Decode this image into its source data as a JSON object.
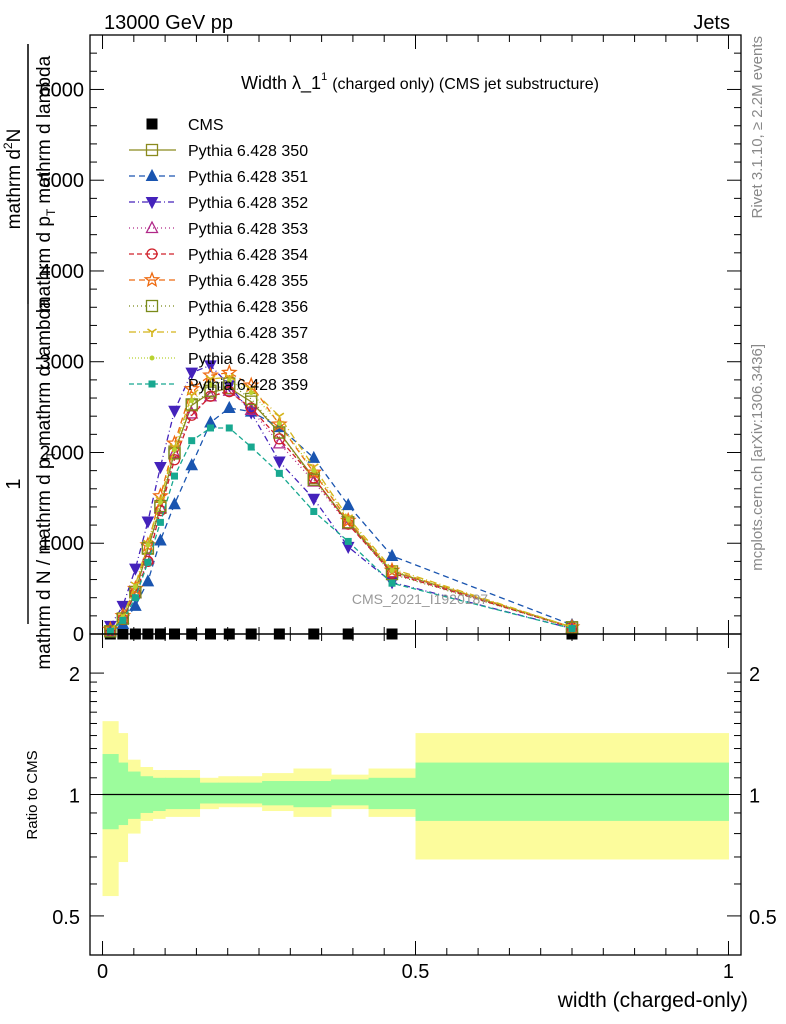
{
  "header": {
    "left": "13000 GeV pp",
    "right": "Jets"
  },
  "side_text": {
    "rivet": "Rivet 3.1.10, ≥ 2.2M events",
    "mcplots": "mcplots.cern.ch [arXiv:1306.3436]"
  },
  "watermark": "CMS_2021_I1920187",
  "chart_data": [
    {
      "type": "line",
      "panel": "main",
      "title_main": "Width λ_1",
      "title_sup": "1",
      "title_rest": "(charged only) (CMS jet substructure)",
      "ylabel_parts": [
        "mathrm d N / mathrm d p",
        "T",
        " mathrm d lambda",
        "1",
        "mathrm d N / mathrm d p",
        "T",
        " mathrm d lambda"
      ],
      "ylabel_num_top": "mathrm d",
      "ylabel_num_sup": "2",
      "ylabel_num_rest": "N",
      "ylabel_frac_one": "1",
      "ylabel_den_main": "mathrm d N / mathrm d p",
      "ylabel_den_sub": "T",
      "ylabel_den_rest": "mathrm d lambda",
      "ylabel_num_main": "mathrm d p",
      "ylabel_num_sub": "T",
      "ylabel_num_end": "mathrm d lambda",
      "xlim": [
        -0.02,
        1.02
      ],
      "ylim": [
        0,
        6600
      ],
      "yticks": [
        "0",
        "1000",
        "2000",
        "3000",
        "4000",
        "5000",
        "6000"
      ],
      "x": [
        0.0125,
        0.0325,
        0.0525,
        0.0725,
        0.0925,
        0.115,
        0.1425,
        0.1725,
        0.2025,
        0.2375,
        0.2825,
        0.3375,
        0.3925,
        0.4625,
        0.75
      ],
      "series": [
        {
          "name": "CMS",
          "values": [
            0,
            0,
            0,
            0,
            0,
            0,
            0,
            0,
            0,
            0,
            0,
            0,
            0,
            0,
            0
          ],
          "color": "#000000",
          "marker": "square-filled",
          "dash": "none"
        },
        {
          "name": "Pythia 6.428 350",
          "values": [
            30,
            170,
            460,
            940,
            1390,
            2010,
            2520,
            2660,
            2710,
            2560,
            2220,
            1720,
            1230,
            690,
            75
          ],
          "color": "#8a8a1e",
          "marker": "square-open",
          "dash": "solid"
        },
        {
          "name": "Pythia 6.428 351",
          "values": [
            20,
            110,
            310,
            580,
            1030,
            1430,
            1860,
            2330,
            2490,
            2450,
            2280,
            1940,
            1420,
            860,
            100
          ],
          "color": "#1a55b0",
          "marker": "triangle-up-filled",
          "dash": "6,4"
        },
        {
          "name": "Pythia 6.428 352",
          "values": [
            90,
            310,
            720,
            1240,
            1840,
            2460,
            2880,
            2960,
            2740,
            2440,
            1900,
            1490,
            960,
            570,
            60
          ],
          "color": "#4422bb",
          "marker": "triangle-down-filled",
          "dash": "6,3,1,3"
        },
        {
          "name": "Pythia 6.428 353",
          "values": [
            40,
            170,
            450,
            830,
            1390,
            1990,
            2430,
            2620,
            2680,
            2470,
            2100,
            1680,
            1210,
            680,
            70
          ],
          "color": "#b02888",
          "marker": "triangle-up-open",
          "dash": "1,3"
        },
        {
          "name": "Pythia 6.428 354",
          "values": [
            40,
            160,
            450,
            800,
            1360,
            1920,
            2410,
            2620,
            2670,
            2490,
            2150,
            1720,
            1210,
            670,
            70
          ],
          "color": "#d0202a",
          "marker": "circle-open",
          "dash": "5,3"
        },
        {
          "name": "Pythia 6.428 355",
          "values": [
            50,
            200,
            500,
            980,
            1520,
            2100,
            2700,
            2850,
            2880,
            2740,
            2310,
            1780,
            1250,
            700,
            75
          ],
          "color": "#ee6a10",
          "marker": "star-open",
          "dash": "6,4"
        },
        {
          "name": "Pythia 6.428 356",
          "values": [
            30,
            170,
            460,
            950,
            1410,
            1990,
            2530,
            2680,
            2760,
            2590,
            2220,
            1700,
            1230,
            660,
            70
          ],
          "color": "#7a8a1a",
          "marker": "square-open",
          "dash": "1,3"
        },
        {
          "name": "Pythia 6.428 357",
          "values": [
            40,
            200,
            540,
            1000,
            1480,
            2060,
            2630,
            2810,
            2830,
            2700,
            2400,
            1840,
            1280,
            720,
            75
          ],
          "color": "#d4b41a",
          "marker": "y-mark",
          "dash": "7,3,1,3"
        },
        {
          "name": "Pythia 6.428 358",
          "values": [
            40,
            190,
            520,
            980,
            1450,
            2030,
            2570,
            2750,
            2790,
            2660,
            2320,
            1800,
            1260,
            700,
            75
          ],
          "color": "#b8d230",
          "marker": "dot",
          "dash": "1,2"
        },
        {
          "name": "Pythia 6.428 359",
          "values": [
            30,
            150,
            400,
            790,
            1230,
            1740,
            2130,
            2270,
            2270,
            2060,
            1770,
            1350,
            1020,
            560,
            60
          ],
          "color": "#18a890",
          "marker": "square-small",
          "dash": "5,3"
        }
      ]
    },
    {
      "type": "area",
      "panel": "ratio",
      "ylabel": "Ratio to CMS",
      "xlabel": "width (charged-only)",
      "xticks": [
        "0",
        "0.5",
        "1"
      ],
      "yticks": [
        "0.5",
        "1",
        "2"
      ],
      "yscale": "log",
      "ylim": [
        0.4,
        2.5
      ],
      "reference_line": 1,
      "bins": [
        0,
        0.025,
        0.04,
        0.06,
        0.08,
        0.1,
        0.125,
        0.155,
        0.185,
        0.215,
        0.255,
        0.305,
        0.365,
        0.425,
        0.5,
        1.0
      ],
      "stat_band_low": [
        0.82,
        0.84,
        0.87,
        0.9,
        0.91,
        0.92,
        0.92,
        0.95,
        0.95,
        0.95,
        0.94,
        0.93,
        0.94,
        0.92,
        0.86
      ],
      "stat_band_high": [
        1.26,
        1.2,
        1.14,
        1.11,
        1.1,
        1.1,
        1.1,
        1.07,
        1.07,
        1.07,
        1.08,
        1.08,
        1.09,
        1.1,
        1.2
      ],
      "total_band_low": [
        0.56,
        0.68,
        0.8,
        0.86,
        0.87,
        0.88,
        0.88,
        0.92,
        0.93,
        0.93,
        0.91,
        0.88,
        0.92,
        0.88,
        0.69
      ],
      "total_band_high": [
        1.52,
        1.42,
        1.22,
        1.17,
        1.15,
        1.15,
        1.15,
        1.1,
        1.11,
        1.11,
        1.13,
        1.16,
        1.12,
        1.16,
        1.42
      ],
      "stat_color": "#9cfc9c",
      "total_color": "#fcfc9c"
    }
  ]
}
